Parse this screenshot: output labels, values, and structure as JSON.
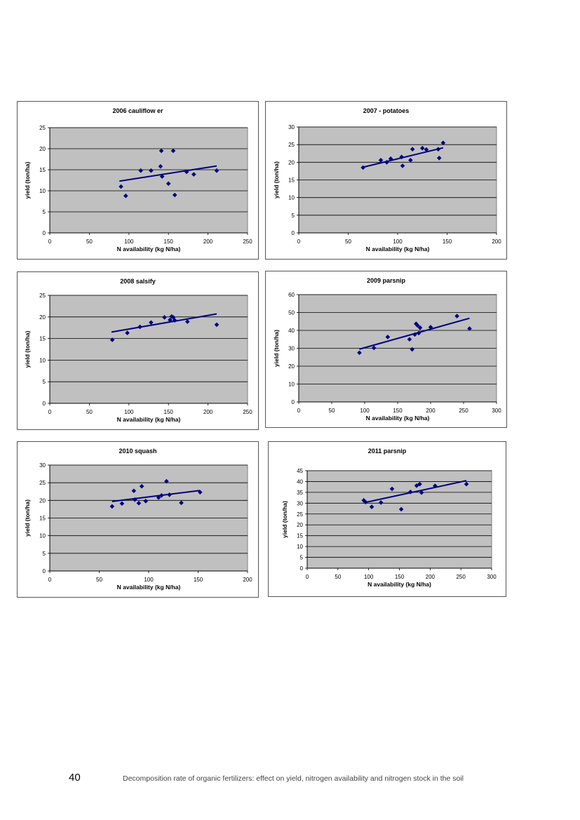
{
  "footer": {
    "page_number": "40",
    "text": "Decomposition rate of organic fertilizers: effect on yield, nitrogen availability and nitrogen stock in the soil"
  },
  "colors": {
    "plot_bg": "#c0c0c0",
    "series": "#000080",
    "grid": "#000000"
  },
  "chart_data": [
    {
      "type": "scatter",
      "title": "2006 cauliflow er",
      "xlabel": "N availability (kg N/ha)",
      "ylabel": "yield (ton/ha)",
      "xlim": [
        0,
        250
      ],
      "ylim": [
        0,
        25
      ],
      "xticks": [
        0,
        50,
        100,
        150,
        200,
        250
      ],
      "yticks": [
        0,
        5,
        10,
        15,
        20,
        25
      ],
      "grid": true,
      "legend": "none",
      "points": [
        [
          90,
          11
        ],
        [
          96,
          8.8
        ],
        [
          115,
          14.8
        ],
        [
          128,
          14.8
        ],
        [
          140,
          15.8
        ],
        [
          141,
          19.5
        ],
        [
          142,
          13.4
        ],
        [
          150,
          11.7
        ],
        [
          156,
          19.5
        ],
        [
          158,
          9
        ],
        [
          173,
          14.5
        ],
        [
          182,
          13.9
        ],
        [
          211,
          14.8
        ]
      ],
      "trendline": [
        [
          88,
          12.3
        ],
        [
          211,
          15.9
        ]
      ]
    },
    {
      "type": "scatter",
      "title": "2007 - potatoes",
      "xlabel": "N availability (kg N/ha)",
      "ylabel": "yield (ton/ha)",
      "xlim": [
        0,
        200
      ],
      "ylim": [
        0,
        30
      ],
      "xticks": [
        0,
        50,
        100,
        150,
        200
      ],
      "yticks": [
        0,
        5,
        10,
        15,
        20,
        25,
        30
      ],
      "grid": true,
      "legend": "none",
      "points": [
        [
          65,
          18.5
        ],
        [
          83,
          20.6
        ],
        [
          89,
          20
        ],
        [
          93,
          21
        ],
        [
          104,
          21.5
        ],
        [
          105,
          19
        ],
        [
          113,
          20.6
        ],
        [
          115,
          23.7
        ],
        [
          125,
          24
        ],
        [
          129,
          23.6
        ],
        [
          141,
          23.7
        ],
        [
          142,
          21.2
        ],
        [
          146,
          25.5
        ]
      ],
      "trendline": [
        [
          65,
          18.6
        ],
        [
          146,
          24.1
        ]
      ]
    },
    {
      "type": "scatter",
      "title": "2008 salsify",
      "xlabel": "N availability (kg N/ha)",
      "ylabel": "yield (ton/ha)",
      "xlim": [
        0,
        250
      ],
      "ylim": [
        0,
        25
      ],
      "xticks": [
        0,
        50,
        100,
        150,
        200,
        250
      ],
      "yticks": [
        0,
        5,
        10,
        15,
        20,
        25
      ],
      "grid": true,
      "legend": "none",
      "points": [
        [
          79,
          14.7
        ],
        [
          98,
          16.3
        ],
        [
          114,
          17.7
        ],
        [
          128,
          18.7
        ],
        [
          145,
          19.9
        ],
        [
          152,
          19.3
        ],
        [
          154,
          20.1
        ],
        [
          156,
          19.9
        ],
        [
          158,
          19.2
        ],
        [
          174,
          18.9
        ],
        [
          211,
          18.2
        ]
      ],
      "trendline": [
        [
          78,
          16.5
        ],
        [
          211,
          20.7
        ]
      ]
    },
    {
      "type": "scatter",
      "title": "2009 parsnip",
      "xlabel": "N availability (kg N/ha)",
      "ylabel": "yield (ton/ha)",
      "xlim": [
        0,
        300
      ],
      "ylim": [
        0,
        60
      ],
      "xticks": [
        0,
        50,
        100,
        150,
        200,
        250,
        300
      ],
      "yticks": [
        0,
        10,
        20,
        30,
        40,
        50,
        60
      ],
      "grid": true,
      "legend": "none",
      "points": [
        [
          92,
          27.5
        ],
        [
          114,
          30.2
        ],
        [
          135,
          36.3
        ],
        [
          168,
          35
        ],
        [
          172,
          29.4
        ],
        [
          176,
          37.7
        ],
        [
          178,
          43.7
        ],
        [
          180,
          42.8
        ],
        [
          182,
          38.5
        ],
        [
          184,
          41.5
        ],
        [
          200,
          41.8
        ],
        [
          240,
          48
        ],
        [
          259,
          41
        ]
      ],
      "trendline": [
        [
          92,
          29.5
        ],
        [
          259,
          46.8
        ]
      ]
    },
    {
      "type": "scatter",
      "title": "2010 squash",
      "xlabel": "N availability (kg N/ha)",
      "ylabel": "yield (ton/ha)",
      "xlim": [
        0,
        200
      ],
      "ylim": [
        0,
        30
      ],
      "xticks": [
        0,
        50,
        100,
        150,
        200
      ],
      "yticks": [
        0,
        5,
        10,
        15,
        20,
        25,
        30
      ],
      "grid": true,
      "legend": "none",
      "points": [
        [
          63,
          18.3
        ],
        [
          73,
          19.1
        ],
        [
          85,
          22.7
        ],
        [
          86,
          20.2
        ],
        [
          90,
          19.2
        ],
        [
          93,
          24
        ],
        [
          97,
          19.8
        ],
        [
          110,
          20.8
        ],
        [
          113,
          21.4
        ],
        [
          118,
          25.4
        ],
        [
          121,
          21.6
        ],
        [
          133,
          19.3
        ],
        [
          152,
          22.3
        ]
      ],
      "trendline": [
        [
          63,
          19.7
        ],
        [
          152,
          22.8
        ]
      ]
    },
    {
      "type": "scatter",
      "title": "2011 parsnip",
      "xlabel": "N availability  (kg N/ha)",
      "ylabel": "yield (ton/ha)",
      "xlim": [
        0,
        300
      ],
      "ylim": [
        0,
        45
      ],
      "xticks": [
        0,
        50,
        100,
        150,
        200,
        250,
        300
      ],
      "yticks": [
        0,
        5,
        10,
        15,
        20,
        25,
        30,
        35,
        40,
        45
      ],
      "grid": true,
      "legend": "none",
      "points": [
        [
          92,
          31.3
        ],
        [
          95,
          30.5
        ],
        [
          105,
          28.3
        ],
        [
          120,
          30.3
        ],
        [
          138,
          36.6
        ],
        [
          153,
          27.2
        ],
        [
          168,
          35.2
        ],
        [
          178,
          38.1
        ],
        [
          183,
          38.8
        ],
        [
          186,
          34.9
        ],
        [
          208,
          38
        ],
        [
          259,
          38.8
        ]
      ],
      "trendline": [
        [
          92,
          30.2
        ],
        [
          259,
          40.4
        ]
      ]
    }
  ]
}
